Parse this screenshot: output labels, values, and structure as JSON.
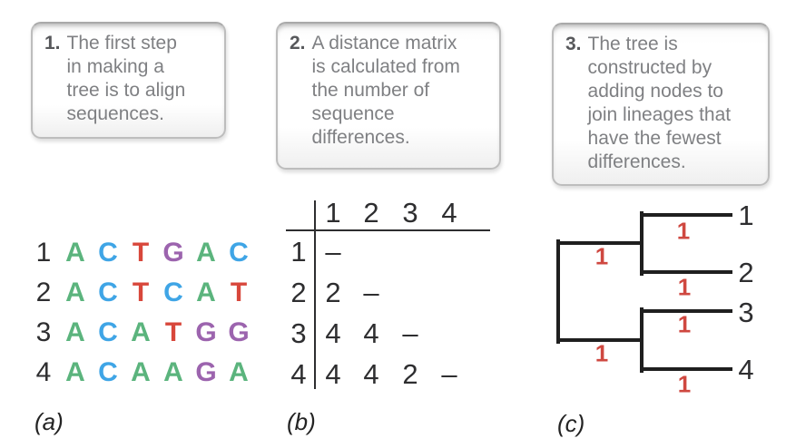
{
  "figure": {
    "kind": "phylogenetic-tree-construction-steps"
  },
  "callouts": [
    {
      "number": "1.",
      "text": "The first step\nin making a\ntree is to align\nsequences."
    },
    {
      "number": "2.",
      "text": "A distance matrix\nis calculated from\nthe number of\nsequence\ndifferences."
    },
    {
      "number": "3.",
      "text": "The tree is\nconstructed by\nadding nodes to\njoin lineages that\nhave the fewest\ndifferences."
    }
  ],
  "alignment": {
    "rows": [
      {
        "id": "1",
        "bases": [
          "A",
          "C",
          "T",
          "G",
          "A",
          "C"
        ]
      },
      {
        "id": "2",
        "bases": [
          "A",
          "C",
          "T",
          "C",
          "A",
          "T"
        ]
      },
      {
        "id": "3",
        "bases": [
          "A",
          "C",
          "A",
          "T",
          "G",
          "G"
        ]
      },
      {
        "id": "4",
        "bases": [
          "A",
          "C",
          "A",
          "A",
          "G",
          "A"
        ]
      }
    ],
    "base_colors": {
      "A": "#5bb47d",
      "C": "#3fa5e6",
      "T": "#d8473b",
      "G": "#9c64ae"
    }
  },
  "matrix": {
    "col_headers": [
      "1",
      "2",
      "3",
      "4"
    ],
    "rows": [
      {
        "label": "1",
        "cells": [
          "–",
          "",
          "",
          ""
        ]
      },
      {
        "label": "2",
        "cells": [
          "2",
          "–",
          "",
          ""
        ]
      },
      {
        "label": "3",
        "cells": [
          "4",
          "4",
          "–",
          ""
        ]
      },
      {
        "label": "4",
        "cells": [
          "4",
          "4",
          "2",
          "–"
        ]
      }
    ]
  },
  "tree": {
    "leaves": [
      "1",
      "2",
      "3",
      "4"
    ],
    "branch_labels": [
      "1",
      "1",
      "1",
      "1",
      "1",
      "1"
    ],
    "branch_label_color": "#cf4840",
    "line_color": "#1f1f1f"
  },
  "panel_labels": [
    "(a)",
    "(b)",
    "(c)"
  ]
}
